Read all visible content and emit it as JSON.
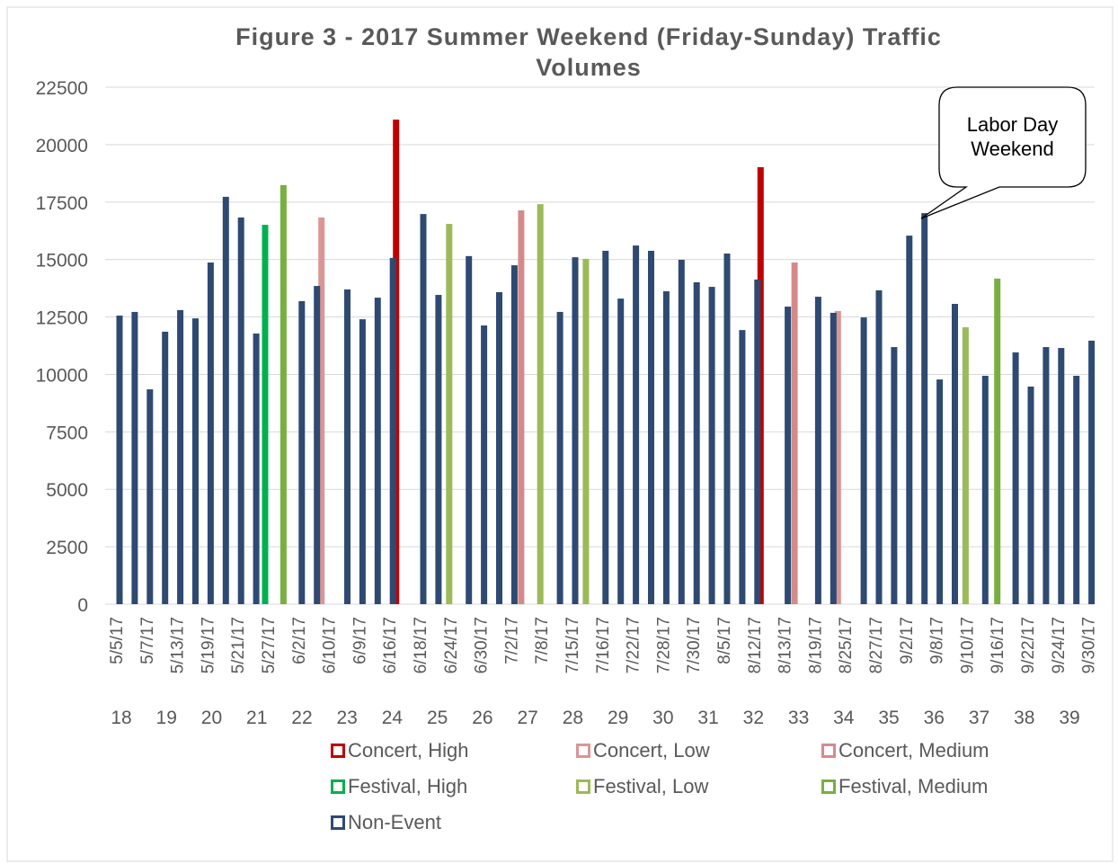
{
  "chart_data": {
    "type": "bar",
    "title": "Figure 3 - 2017 Summer Weekend (Friday-Sunday) Traffic Volumes",
    "annotation": "Labor Day Weekend",
    "ylim": [
      0,
      22500
    ],
    "yticks": [
      0,
      2500,
      5000,
      7500,
      10000,
      12500,
      15000,
      17500,
      20000,
      22500
    ],
    "grid": true,
    "legend": "bottom",
    "categories": [
      "5/5/17",
      null,
      "5/7/17",
      null,
      "5/13/17",
      null,
      "5/19/17",
      null,
      "5/21/17",
      null,
      "5/27/17",
      null,
      "6/2/17",
      null,
      "6/10/17",
      null,
      "6/9/17",
      null,
      "6/16/17",
      null,
      "6/18/17",
      null,
      "6/24/17",
      null,
      "6/30/17",
      null,
      "7/2/17",
      null,
      "7/8/17",
      null,
      "7/15/17",
      null,
      "7/16/17",
      null,
      "7/22/17",
      null,
      "7/28/17",
      null,
      "7/30/17",
      null,
      "8/5/17",
      null,
      "8/12/17",
      null,
      "8/13/17",
      null,
      "8/19/17",
      null,
      "8/25/17",
      null,
      "8/27/17",
      null,
      "9/2/17",
      null,
      "9/8/17",
      null,
      "9/10/17",
      null,
      "9/16/17",
      null,
      "9/22/17",
      null,
      "9/24/17",
      null,
      "9/30/17"
    ],
    "groups": [
      "18",
      "19",
      "20",
      "21",
      "22",
      "23",
      "24",
      "25",
      "26",
      "27",
      "28",
      "29",
      "30",
      "31",
      "32",
      "33",
      "34",
      "35",
      "36",
      "37",
      "38",
      "39"
    ],
    "series": [
      {
        "name": "Concert, High",
        "color": "#c00000",
        "values": [
          null,
          null,
          null,
          null,
          null,
          null,
          null,
          null,
          null,
          null,
          null,
          null,
          null,
          null,
          null,
          null,
          null,
          null,
          21090,
          null,
          null,
          null,
          null,
          null,
          null,
          null,
          null,
          null,
          null,
          null,
          null,
          null,
          null,
          null,
          null,
          null,
          null,
          null,
          null,
          null,
          null,
          null,
          19020,
          null,
          null,
          null,
          null,
          null,
          null,
          null,
          null,
          null,
          null,
          null,
          null,
          null,
          null,
          null,
          null,
          null,
          null,
          null,
          null,
          null,
          null
        ]
      },
      {
        "name": "Concert, Low",
        "color": "#da9694",
        "values": [
          null,
          null,
          null,
          null,
          null,
          null,
          null,
          null,
          null,
          null,
          null,
          null,
          null,
          16830,
          null,
          null,
          null,
          null,
          null,
          null,
          null,
          null,
          null,
          null,
          null,
          null,
          null,
          null,
          null,
          null,
          null,
          null,
          null,
          null,
          null,
          null,
          null,
          null,
          null,
          null,
          null,
          null,
          null,
          null,
          null,
          null,
          null,
          12760,
          null,
          null,
          null,
          null,
          null,
          null,
          null,
          null,
          null,
          null,
          null,
          null,
          null,
          null,
          null,
          null,
          null
        ]
      },
      {
        "name": "Concert, Medium",
        "color": "#d58a8a",
        "values": [
          null,
          null,
          null,
          null,
          null,
          null,
          null,
          null,
          null,
          null,
          null,
          null,
          null,
          null,
          null,
          null,
          null,
          null,
          null,
          null,
          null,
          null,
          null,
          null,
          null,
          null,
          17140,
          null,
          null,
          null,
          null,
          null,
          null,
          null,
          null,
          null,
          null,
          null,
          null,
          null,
          null,
          null,
          null,
          null,
          14870,
          null,
          null,
          null,
          null,
          null,
          null,
          null,
          null,
          null,
          null,
          null,
          null,
          null,
          null,
          null,
          null,
          null,
          null,
          null,
          null
        ]
      },
      {
        "name": "Festival, High",
        "color": "#00b050",
        "values": [
          null,
          null,
          null,
          null,
          null,
          null,
          null,
          null,
          null,
          null,
          16510,
          null,
          null,
          null,
          null,
          null,
          null,
          null,
          null,
          null,
          null,
          null,
          null,
          null,
          null,
          null,
          null,
          null,
          null,
          null,
          null,
          null,
          null,
          null,
          null,
          null,
          null,
          null,
          null,
          null,
          null,
          null,
          null,
          null,
          null,
          null,
          null,
          null,
          null,
          null,
          null,
          null,
          null,
          null,
          null,
          null,
          null,
          null,
          null,
          null,
          null,
          null,
          null,
          null,
          null
        ]
      },
      {
        "name": "Festival, Low",
        "color": "#9bbb59",
        "values": [
          null,
          null,
          null,
          null,
          null,
          null,
          null,
          null,
          null,
          null,
          null,
          null,
          null,
          null,
          null,
          null,
          null,
          null,
          null,
          null,
          null,
          null,
          16550,
          null,
          null,
          null,
          null,
          null,
          17410,
          null,
          null,
          15030,
          null,
          null,
          null,
          null,
          null,
          null,
          null,
          null,
          null,
          null,
          null,
          null,
          null,
          null,
          null,
          null,
          null,
          null,
          null,
          null,
          null,
          null,
          null,
          null,
          12050,
          null,
          null,
          null,
          null,
          null,
          null,
          null,
          null
        ]
      },
      {
        "name": "Festival, Medium",
        "color": "#77b041",
        "values": [
          null,
          null,
          null,
          null,
          null,
          null,
          null,
          null,
          null,
          null,
          null,
          18240,
          null,
          null,
          null,
          null,
          null,
          null,
          null,
          null,
          null,
          null,
          null,
          null,
          null,
          null,
          null,
          null,
          null,
          null,
          null,
          null,
          null,
          null,
          null,
          null,
          null,
          null,
          null,
          null,
          null,
          null,
          null,
          null,
          null,
          null,
          null,
          null,
          null,
          null,
          null,
          null,
          null,
          null,
          null,
          null,
          null,
          null,
          14170,
          null,
          null,
          null,
          null,
          null,
          null
        ]
      },
      {
        "name": "Non-Event",
        "color": "#2e4a72",
        "values": [
          12560,
          12720,
          9350,
          11860,
          12800,
          12440,
          14870,
          17730,
          16830,
          11780,
          null,
          null,
          13190,
          13850,
          null,
          13700,
          12400,
          13340,
          15070,
          null,
          16980,
          13460,
          null,
          15150,
          12130,
          13580,
          14750,
          null,
          null,
          12720,
          15100,
          null,
          15380,
          13300,
          15610,
          15380,
          13620,
          14990,
          14010,
          13810,
          15260,
          11930,
          14130,
          null,
          12950,
          null,
          13380,
          12680,
          null,
          12480,
          13660,
          11190,
          16040,
          17020,
          9780,
          13070,
          null,
          9940,
          null,
          10960,
          9470,
          11190,
          11150,
          9940,
          11470
        ]
      }
    ]
  }
}
